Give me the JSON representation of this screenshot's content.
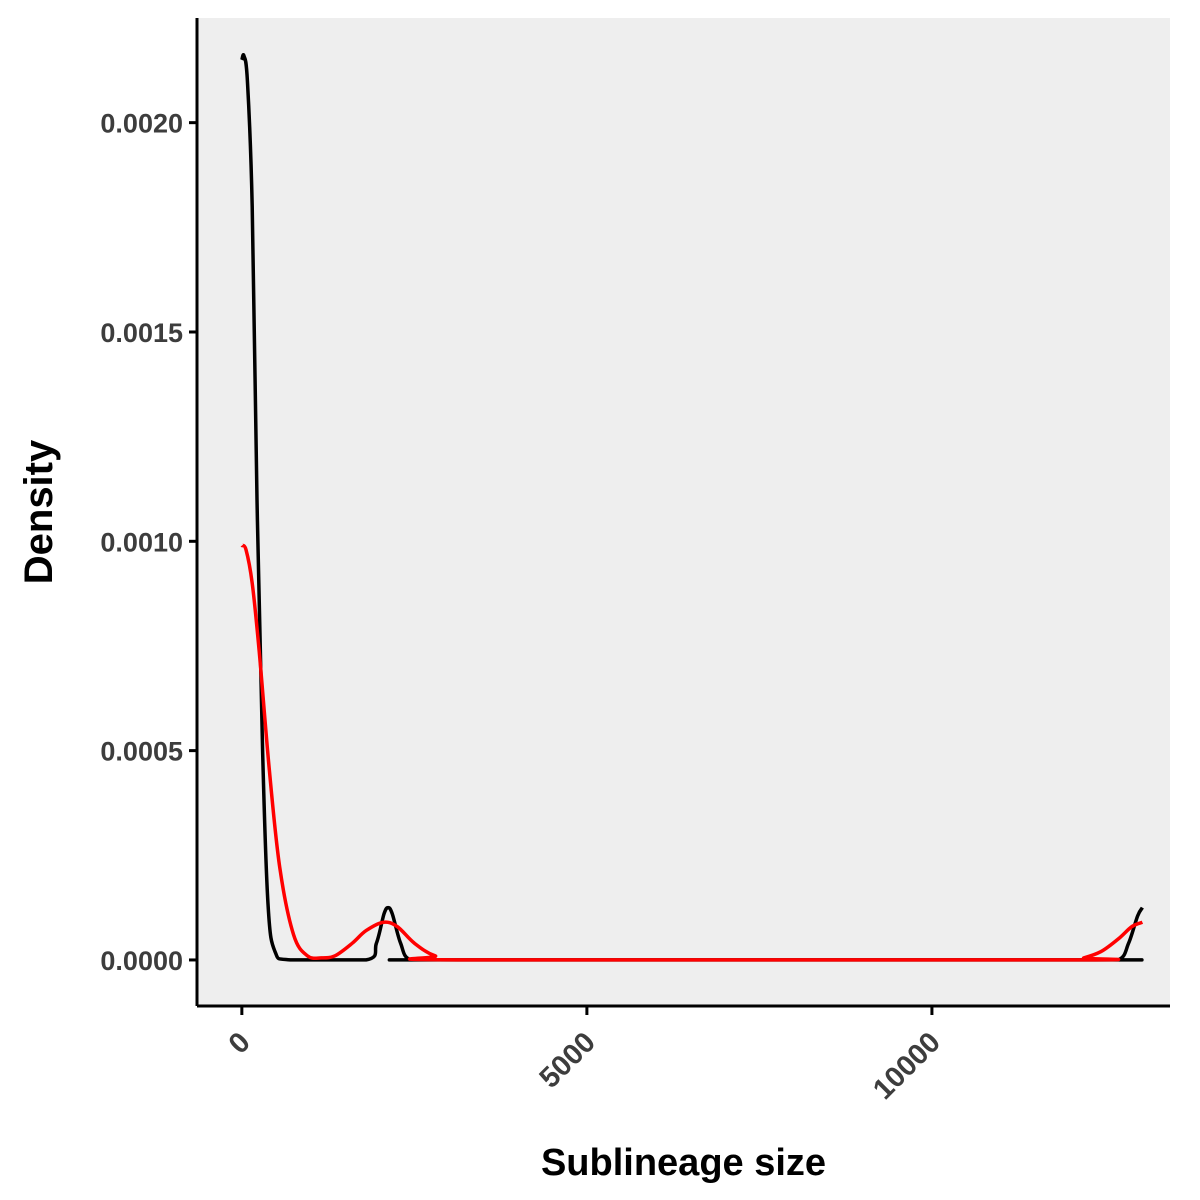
{
  "chart_data": {
    "type": "line",
    "title": "",
    "xlabel": "Sublineage size",
    "ylabel": "Density",
    "xlim": [
      -650,
      13450
    ],
    "ylim": [
      -0.00011,
      0.00225
    ],
    "x_ticks": [
      0,
      5000,
      10000
    ],
    "x_tick_labels": [
      "0",
      "5000",
      "10000"
    ],
    "y_ticks": [
      0,
      0.0005,
      0.001,
      0.0015,
      0.002
    ],
    "y_tick_labels": [
      "0.0000",
      "0.0005",
      "0.0010",
      "0.0015",
      "0.0020"
    ],
    "panel_background": "#eeeeee",
    "grid": false,
    "legend": "none",
    "series": [
      {
        "color": "#000000",
        "points": [
          [
            0,
            0.00215
          ],
          [
            30,
            0.00216
          ],
          [
            80,
            0.0021
          ],
          [
            150,
            0.0018
          ],
          [
            220,
            0.0011
          ],
          [
            300,
            0.0005
          ],
          [
            380,
            0.00013
          ],
          [
            480,
            2e-05
          ],
          [
            700,
            0.0
          ],
          [
            1800,
            0.0
          ],
          [
            1950,
            4e-05
          ],
          [
            2060,
            0.00011
          ],
          [
            2120,
            0.000125
          ],
          [
            2180,
            0.00011
          ],
          [
            2300,
            4e-05
          ],
          [
            2450,
            0.0
          ],
          [
            3000,
            0.0
          ],
          [
            12200,
            0.0
          ],
          [
            12700,
            0.0
          ],
          [
            12850,
            4e-05
          ],
          [
            12980,
            0.000105
          ],
          [
            13050,
            0.000125
          ]
        ]
      },
      {
        "color": "#ff0000",
        "points": [
          [
            0,
            0.00099
          ],
          [
            60,
            0.00098
          ],
          [
            150,
            0.0009
          ],
          [
            250,
            0.00074
          ],
          [
            400,
            0.00045
          ],
          [
            550,
            0.00022
          ],
          [
            750,
            6e-05
          ],
          [
            950,
            1e-05
          ],
          [
            1150,
            5e-06
          ],
          [
            1350,
            1e-05
          ],
          [
            1600,
            4e-05
          ],
          [
            1800,
            7e-05
          ],
          [
            2050,
            9e-05
          ],
          [
            2250,
            8e-05
          ],
          [
            2500,
            4e-05
          ],
          [
            2800,
            1e-05
          ],
          [
            3200,
            0.0
          ],
          [
            12000,
            0.0
          ],
          [
            12200,
            5e-06
          ],
          [
            12450,
            2e-05
          ],
          [
            12700,
            5e-05
          ],
          [
            12900,
            8e-05
          ],
          [
            13050,
            9e-05
          ]
        ]
      }
    ]
  }
}
